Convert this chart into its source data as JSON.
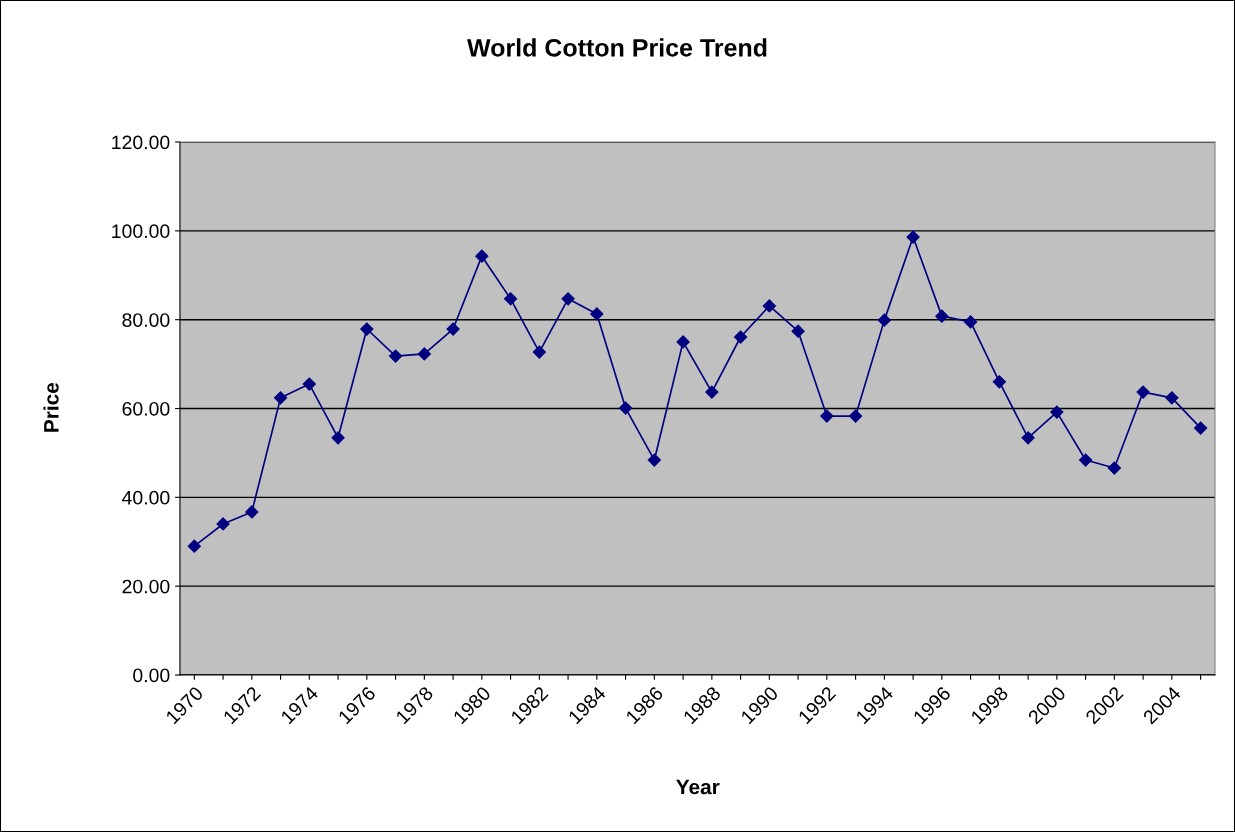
{
  "chart_data": {
    "type": "line",
    "title": "World Cotton Price Trend",
    "xlabel": "Year",
    "ylabel": "Price",
    "categories": [
      "1970",
      null,
      "1972",
      null,
      "1974",
      null,
      "1976",
      null,
      "1978",
      null,
      "1980",
      null,
      "1982",
      null,
      "1984",
      null,
      "1986",
      null,
      "1988",
      null,
      "1990",
      null,
      "1992",
      null,
      "1994",
      null,
      "1996",
      null,
      "1998",
      null,
      "2000",
      null,
      "2002",
      null,
      "2004",
      null
    ],
    "series": [
      {
        "color": "#000080",
        "values": [
          29.0,
          34.0,
          36.7,
          62.4,
          65.5,
          53.4,
          77.9,
          71.8,
          72.3,
          77.9,
          94.3,
          84.7,
          72.7,
          84.7,
          81.3,
          60.1,
          48.4,
          75.0,
          63.7,
          76.1,
          83.1,
          77.4,
          58.3,
          58.3,
          79.9,
          98.6,
          80.8,
          79.5,
          66.0,
          53.4,
          59.2,
          48.4,
          46.6,
          63.7,
          62.4,
          55.6
        ]
      }
    ],
    "ylim": [
      0,
      120
    ],
    "yticks": [
      {
        "value": 0,
        "label": "0.00"
      },
      {
        "value": 20,
        "label": "20.00"
      },
      {
        "value": 40,
        "label": "40.00"
      },
      {
        "value": 60,
        "label": "60.00"
      },
      {
        "value": 80,
        "label": "80.00"
      },
      {
        "value": 100,
        "label": "100.00"
      },
      {
        "value": 120,
        "label": "120.00"
      }
    ],
    "grid": "y",
    "marker": "diamond",
    "line_style": "solid"
  }
}
